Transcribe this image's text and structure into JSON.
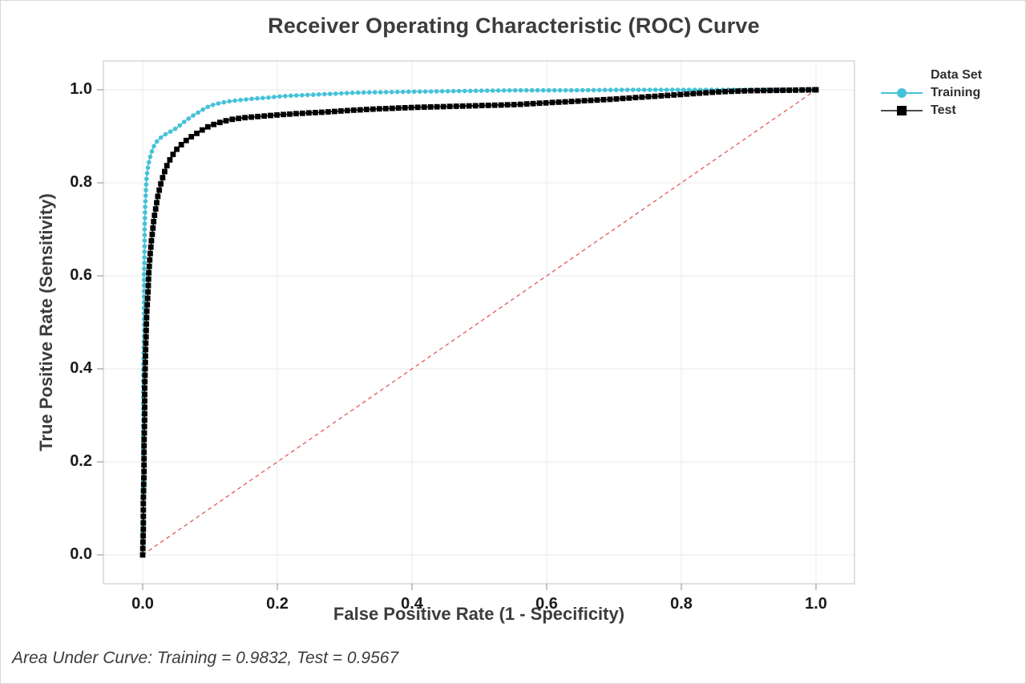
{
  "title": "Receiver Operating Characteristic (ROC) Curve",
  "footnote": "Area Under Curve: Training = 0.9832, Test = 0.9567",
  "legend": {
    "title": "Data Set",
    "items": [
      {
        "label": "Training",
        "marker": "circle",
        "marker_color": "#45c2d9",
        "line_color": "#45c2d9"
      },
      {
        "label": "Test",
        "marker": "square",
        "marker_color": "#000000",
        "line_color": "#4d4d4d"
      }
    ]
  },
  "chart_data": {
    "type": "line",
    "title": "Receiver Operating Characteristic (ROC) Curve",
    "xlabel": "False Positive Rate (1 - Specificity)",
    "ylabel": "True Positive Rate (Sensitivity)",
    "xlim": [
      0,
      1
    ],
    "ylim": [
      0,
      1
    ],
    "grid": true,
    "legend_position": "right",
    "x_ticks": {
      "values": [
        0,
        0.2,
        0.4,
        0.6,
        0.8,
        1.0
      ],
      "labels": [
        "0.0",
        "0.2",
        "0.4",
        "0.6",
        "0.8",
        "1.0"
      ]
    },
    "y_ticks": {
      "values": [
        0,
        0.2,
        0.4,
        0.6,
        0.8,
        1.0
      ],
      "labels": [
        "0.0",
        "0.2",
        "0.4",
        "0.6",
        "0.8",
        "1.0"
      ]
    },
    "colors": {
      "grid": "#e9e9e9",
      "frame": "#c3c3c3",
      "tick": "#8c8c8c",
      "reference": "#e25a5a"
    },
    "reference_line": {
      "from": [
        0,
        0
      ],
      "to": [
        1,
        1
      ],
      "style": "dashed",
      "color": "#e25a5a"
    },
    "auc": {
      "Training": 0.9832,
      "Test": 0.9567
    },
    "series": [
      {
        "name": "Training",
        "marker": "circle",
        "color": "#45c2d9",
        "auc": 0.9832,
        "points": [
          [
            0.0,
            0.0
          ],
          [
            0.001,
            0.08
          ],
          [
            0.001,
            0.16
          ],
          [
            0.001,
            0.24
          ],
          [
            0.001,
            0.32
          ],
          [
            0.001,
            0.4
          ],
          [
            0.002,
            0.47
          ],
          [
            0.002,
            0.54
          ],
          [
            0.002,
            0.6
          ],
          [
            0.003,
            0.66
          ],
          [
            0.003,
            0.71
          ],
          [
            0.004,
            0.755
          ],
          [
            0.005,
            0.79
          ],
          [
            0.006,
            0.815
          ],
          [
            0.008,
            0.835
          ],
          [
            0.01,
            0.85
          ],
          [
            0.013,
            0.865
          ],
          [
            0.016,
            0.877
          ],
          [
            0.02,
            0.887
          ],
          [
            0.025,
            0.895
          ],
          [
            0.03,
            0.901
          ],
          [
            0.037,
            0.907
          ],
          [
            0.045,
            0.913
          ],
          [
            0.052,
            0.92
          ],
          [
            0.058,
            0.927
          ],
          [
            0.065,
            0.935
          ],
          [
            0.072,
            0.942
          ],
          [
            0.08,
            0.949
          ],
          [
            0.09,
            0.958
          ],
          [
            0.1,
            0.966
          ],
          [
            0.113,
            0.971
          ],
          [
            0.127,
            0.975
          ],
          [
            0.145,
            0.978
          ],
          [
            0.165,
            0.981
          ],
          [
            0.185,
            0.983
          ],
          [
            0.205,
            0.986
          ],
          [
            0.23,
            0.988
          ],
          [
            0.26,
            0.99
          ],
          [
            0.29,
            0.992
          ],
          [
            0.32,
            0.994
          ],
          [
            0.36,
            0.995
          ],
          [
            0.4,
            0.996
          ],
          [
            0.45,
            0.997
          ],
          [
            0.5,
            0.998
          ],
          [
            0.56,
            0.999
          ],
          [
            0.64,
            0.999
          ],
          [
            0.72,
            1.0
          ],
          [
            0.8,
            1.0
          ],
          [
            0.9,
            1.0
          ],
          [
            1.0,
            1.0
          ]
        ]
      },
      {
        "name": "Test",
        "marker": "square",
        "color": "#000000",
        "auc": 0.9567,
        "points": [
          [
            0.0,
            0.0
          ],
          [
            0.001,
            0.06
          ],
          [
            0.001,
            0.12
          ],
          [
            0.002,
            0.18
          ],
          [
            0.002,
            0.24
          ],
          [
            0.003,
            0.3
          ],
          [
            0.003,
            0.36
          ],
          [
            0.004,
            0.42
          ],
          [
            0.005,
            0.47
          ],
          [
            0.006,
            0.52
          ],
          [
            0.008,
            0.565
          ],
          [
            0.009,
            0.605
          ],
          [
            0.011,
            0.645
          ],
          [
            0.013,
            0.675
          ],
          [
            0.015,
            0.7
          ],
          [
            0.017,
            0.725
          ],
          [
            0.02,
            0.75
          ],
          [
            0.023,
            0.775
          ],
          [
            0.027,
            0.798
          ],
          [
            0.031,
            0.818
          ],
          [
            0.036,
            0.837
          ],
          [
            0.042,
            0.854
          ],
          [
            0.048,
            0.868
          ],
          [
            0.055,
            0.879
          ],
          [
            0.062,
            0.888
          ],
          [
            0.07,
            0.897
          ],
          [
            0.08,
            0.906
          ],
          [
            0.09,
            0.915
          ],
          [
            0.1,
            0.923
          ],
          [
            0.115,
            0.93
          ],
          [
            0.13,
            0.936
          ],
          [
            0.15,
            0.94
          ],
          [
            0.175,
            0.943
          ],
          [
            0.2,
            0.946
          ],
          [
            0.23,
            0.949
          ],
          [
            0.27,
            0.952
          ],
          [
            0.31,
            0.956
          ],
          [
            0.35,
            0.959
          ],
          [
            0.4,
            0.962
          ],
          [
            0.45,
            0.964
          ],
          [
            0.5,
            0.966
          ],
          [
            0.55,
            0.968
          ],
          [
            0.6,
            0.972
          ],
          [
            0.65,
            0.976
          ],
          [
            0.7,
            0.98
          ],
          [
            0.74,
            0.984
          ],
          [
            0.78,
            0.988
          ],
          [
            0.82,
            0.992
          ],
          [
            0.86,
            0.996
          ],
          [
            0.9,
            0.998
          ],
          [
            0.95,
            0.999
          ],
          [
            1.0,
            1.0
          ]
        ]
      }
    ]
  }
}
